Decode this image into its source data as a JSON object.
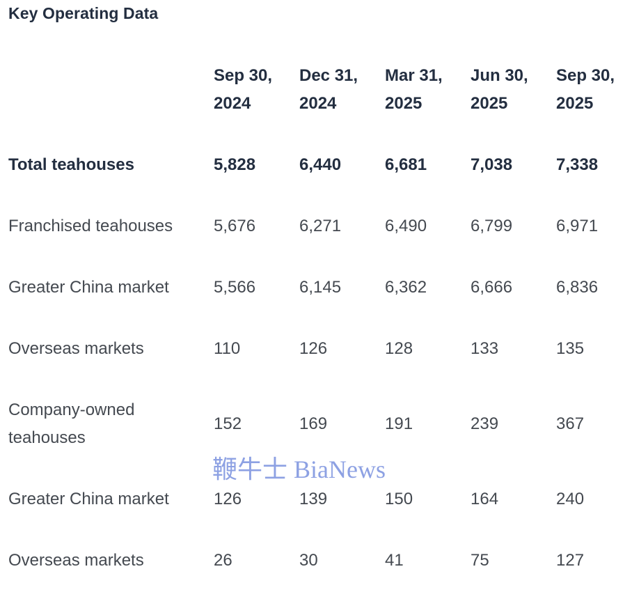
{
  "page": {
    "title": "Key Operating Data",
    "background": "#ffffff"
  },
  "colors": {
    "heading_navy": "#232e40",
    "body_gray": "#444950",
    "watermark_blue": "#8da1e3"
  },
  "watermark": {
    "text": "鞭牛士 BiaNews"
  },
  "table": {
    "columns": [
      "Sep 30, 2024",
      "Dec 31, 2024",
      "Mar 31, 2025",
      "Jun 30, 2025",
      "Sep 30, 2025"
    ],
    "rows": [
      {
        "label": "Total teahouses",
        "emphasis": true,
        "values": [
          "5,828",
          "6,440",
          "6,681",
          "7,038",
          "7,338"
        ]
      },
      {
        "label": "Franchised teahouses",
        "emphasis": false,
        "values": [
          "5,676",
          "6,271",
          "6,490",
          "6,799",
          "6,971"
        ]
      },
      {
        "label": "Greater China market",
        "emphasis": false,
        "values": [
          "5,566",
          "6,145",
          "6,362",
          "6,666",
          "6,836"
        ]
      },
      {
        "label": "Overseas markets",
        "emphasis": false,
        "values": [
          "110",
          "126",
          "128",
          "133",
          "135"
        ]
      },
      {
        "label": "Company-owned teahouses",
        "emphasis": false,
        "values": [
          "152",
          "169",
          "191",
          "239",
          "367"
        ]
      },
      {
        "label": "Greater China market",
        "emphasis": false,
        "values": [
          "126",
          "139",
          "150",
          "164",
          "240"
        ]
      },
      {
        "label": "Overseas markets",
        "emphasis": false,
        "values": [
          "26",
          "30",
          "41",
          "75",
          "127"
        ]
      }
    ]
  },
  "chart_data": {
    "type": "table",
    "title": "Key Operating Data",
    "columns": [
      "Sep 30, 2024",
      "Dec 31, 2024",
      "Mar 31, 2025",
      "Jun 30, 2025",
      "Sep 30, 2025"
    ],
    "rows": [
      {
        "label": "Total teahouses",
        "values": [
          5828,
          6440,
          6681,
          7038,
          7338
        ]
      },
      {
        "label": "Franchised teahouses",
        "values": [
          5676,
          6271,
          6490,
          6799,
          6971
        ]
      },
      {
        "label": "Greater China market (franchised)",
        "values": [
          5566,
          6145,
          6362,
          6666,
          6836
        ]
      },
      {
        "label": "Overseas markets (franchised)",
        "values": [
          110,
          126,
          128,
          133,
          135
        ]
      },
      {
        "label": "Company-owned teahouses",
        "values": [
          152,
          169,
          191,
          239,
          367
        ]
      },
      {
        "label": "Greater China market (company-owned)",
        "values": [
          126,
          139,
          150,
          164,
          240
        ]
      },
      {
        "label": "Overseas markets (company-owned)",
        "values": [
          26,
          30,
          41,
          75,
          127
        ]
      }
    ]
  }
}
